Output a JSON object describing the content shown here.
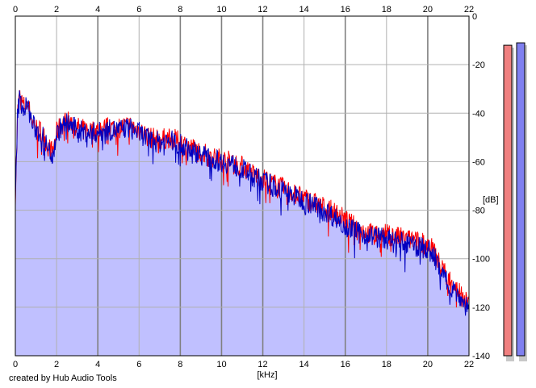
{
  "chart_data": {
    "type": "area",
    "xlabel": "[kHz]",
    "ylabel": "[dB]",
    "xlim": [
      0,
      22
    ],
    "ylim": [
      -140,
      0
    ],
    "x_ticks": [
      0,
      2,
      4,
      6,
      8,
      10,
      12,
      14,
      16,
      18,
      20,
      22
    ],
    "y_ticks": [
      0,
      -20,
      -40,
      -60,
      -80,
      -100,
      -120,
      -140
    ],
    "grid": true,
    "colors": {
      "fill": "#c0c0ff",
      "left_channel": "#ff0000",
      "right_channel": "#0000c0",
      "grid_light": "#b0b0b0",
      "grid_dark": "#808080",
      "meter_left": "#f08080",
      "meter_right": "#8080f0"
    },
    "series": [
      {
        "x": [
          0,
          0.1,
          0.2,
          0.4,
          0.6,
          0.8,
          1.0,
          1.3,
          1.6,
          1.8,
          2.0,
          2.2,
          2.5,
          3.0,
          3.5,
          4.0,
          4.5,
          5.0,
          5.5,
          6.0,
          6.5,
          7.0,
          7.5,
          8.0,
          8.5,
          9.0,
          9.5,
          10.0,
          10.5,
          11.0,
          11.5,
          12.0,
          12.5,
          13.0,
          13.5,
          14.0,
          14.5,
          15.0,
          15.5,
          16.0,
          16.5,
          17.0,
          17.5,
          18.0,
          18.5,
          19.0,
          19.5,
          20.0,
          20.3,
          20.6,
          21.0,
          21.4,
          21.8,
          22.0
        ],
        "values": [
          -78,
          -40,
          -33,
          -37,
          -36,
          -43,
          -46,
          -48,
          -54,
          -56,
          -48,
          -45,
          -43,
          -46,
          -47,
          -47,
          -46,
          -46,
          -45,
          -47,
          -50,
          -51,
          -50,
          -52,
          -54,
          -56,
          -58,
          -59,
          -60,
          -62,
          -65,
          -67,
          -69,
          -71,
          -73,
          -75,
          -77,
          -79,
          -81,
          -84,
          -87,
          -89,
          -90,
          -90,
          -91,
          -92,
          -93,
          -94,
          -97,
          -103,
          -108,
          -112,
          -117,
          -119
        ]
      },
      {
        "x": [
          0,
          0.1,
          0.2,
          0.4,
          0.6,
          0.8,
          1.0,
          1.3,
          1.6,
          1.8,
          2.0,
          2.2,
          2.5,
          3.0,
          3.5,
          4.0,
          4.5,
          5.0,
          5.5,
          6.0,
          6.5,
          7.0,
          7.5,
          8.0,
          8.5,
          9.0,
          9.5,
          10.0,
          10.5,
          11.0,
          11.5,
          12.0,
          12.5,
          13.0,
          13.5,
          14.0,
          14.5,
          15.0,
          15.5,
          16.0,
          16.5,
          17.0,
          17.5,
          18.0,
          18.5,
          19.0,
          19.5,
          20.0,
          20.3,
          20.6,
          21.0,
          21.4,
          21.8,
          22.0
        ],
        "values": [
          -76,
          -41,
          -34,
          -38,
          -37,
          -44,
          -47,
          -49,
          -55,
          -57,
          -49,
          -46,
          -44,
          -47,
          -48,
          -48,
          -47,
          -47,
          -46,
          -48,
          -51,
          -52,
          -51,
          -53,
          -55,
          -57,
          -59,
          -60,
          -61,
          -63,
          -66,
          -68,
          -70,
          -72,
          -74,
          -76,
          -78,
          -80,
          -83,
          -86,
          -89,
          -90,
          -91,
          -92,
          -93,
          -94,
          -95,
          -96,
          -99,
          -105,
          -110,
          -114,
          -119,
          -120
        ]
      }
    ],
    "meters": [
      {
        "value": -12
      },
      {
        "value": -11
      }
    ]
  },
  "credit": "created by Hub Audio Tools"
}
